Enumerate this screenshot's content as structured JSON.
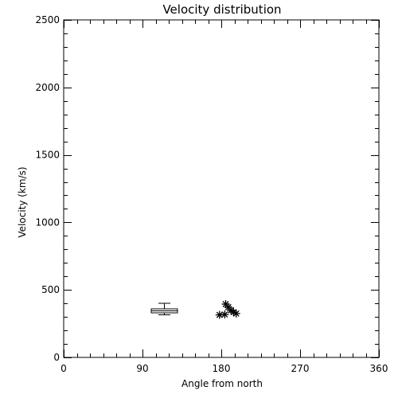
{
  "chart_data": {
    "type": "scatter",
    "title": "Velocity distribution",
    "xlabel": "Angle from north",
    "ylabel": "Velocity (km/s)",
    "xlim": [
      0,
      360
    ],
    "ylim": [
      0,
      2500
    ],
    "xticks": [
      0,
      90,
      180,
      270,
      360
    ],
    "yticks": [
      0,
      500,
      1000,
      1500,
      2000,
      2500
    ],
    "xtick_labels": [
      "0",
      "90",
      "180",
      "270",
      "360"
    ],
    "ytick_labels": [
      "0",
      "500",
      "1000",
      "1500",
      "2000",
      "2500"
    ],
    "grid": false,
    "box": {
      "x": 115,
      "x_width": 30,
      "whisker_low": 315,
      "q1": 330,
      "median": 345,
      "q3": 360,
      "whisker_high": 400
    },
    "points": [
      {
        "x": 178,
        "y": 315
      },
      {
        "x": 184,
        "y": 318
      },
      {
        "x": 185,
        "y": 395
      },
      {
        "x": 188,
        "y": 372
      },
      {
        "x": 191,
        "y": 350
      },
      {
        "x": 194,
        "y": 335
      },
      {
        "x": 197,
        "y": 325
      }
    ]
  }
}
